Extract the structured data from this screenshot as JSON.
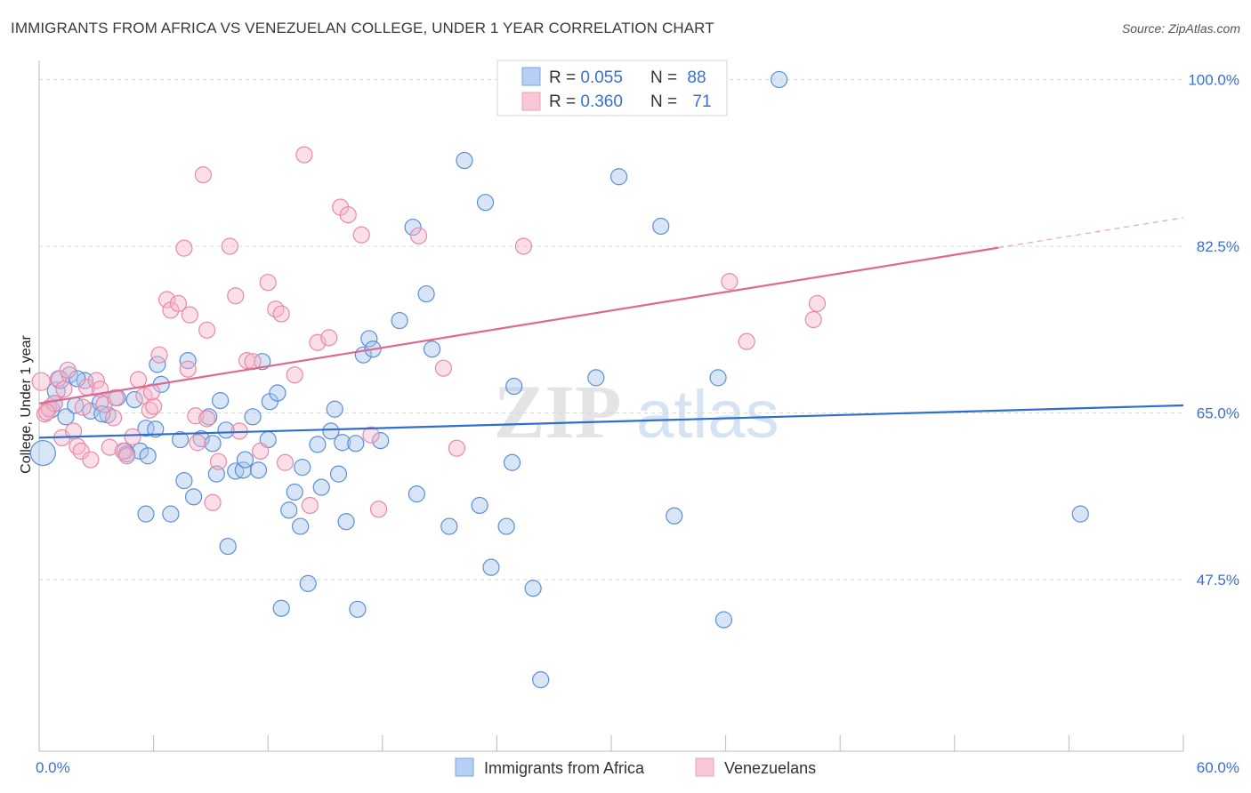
{
  "title": "IMMIGRANTS FROM AFRICA VS VENEZUELAN COLLEGE, UNDER 1 YEAR CORRELATION CHART",
  "source": "Source: ZipAtlas.com",
  "watermark": {
    "zip": "ZIP",
    "atlas": "atlas"
  },
  "colors": {
    "blue_fill": "#a9c5ee",
    "blue_stroke": "#5b8fd6",
    "blue_line": "#2e6fd0",
    "pink_fill": "#f6b8cb",
    "pink_stroke": "#e889a8",
    "pink_line": "#e06890",
    "axis_label": "#3a6fd0",
    "grid": "#d8d8d8"
  },
  "legend": {
    "rows": [
      {
        "r_label": "R = ",
        "r_value": "0.055",
        "n_label": "N = ",
        "n_value": "88",
        "series": "blue"
      },
      {
        "r_label": "R = ",
        "r_value": "0.360",
        "n_label": "N = ",
        "n_value": "71",
        "series": "pink"
      }
    ]
  },
  "bottom_legend": [
    {
      "label": "Immigrants from Africa",
      "series": "blue"
    },
    {
      "label": "Venezuelans",
      "series": "pink"
    }
  ],
  "chart_data": {
    "type": "scatter",
    "title": "IMMIGRANTS FROM AFRICA VS VENEZUELAN COLLEGE, UNDER 1 YEAR CORRELATION CHART",
    "xlabel": "",
    "ylabel": "College, Under 1 year",
    "xlim": [
      0,
      60
    ],
    "ylim": [
      29.5,
      102
    ],
    "x_tick_labels": [
      "0.0%",
      "60.0%"
    ],
    "y_ticks": [
      47.5,
      65.0,
      82.5,
      100.0
    ],
    "y_tick_labels": [
      "47.5%",
      "65.0%",
      "82.5%",
      "100.0%"
    ],
    "grid": "horizontal dashed",
    "legend_position": "top-center",
    "series": [
      {
        "name": "Immigrants from Africa",
        "color": "#a9c5ee",
        "trend": {
          "x": [
            0,
            60
          ],
          "y": [
            62.4,
            65.8
          ],
          "solid_until": 60
        },
        "points": [
          [
            0.2,
            60.8,
            14
          ],
          [
            0.6,
            65.4,
            10
          ],
          [
            0.9,
            67.3,
            10
          ],
          [
            1.1,
            68.5,
            10
          ],
          [
            1.4,
            64.6,
            9
          ],
          [
            1.6,
            69.0,
            9
          ],
          [
            1.9,
            65.8,
            9
          ],
          [
            2.4,
            68.4,
            9
          ],
          [
            2.7,
            65.2,
            9
          ],
          [
            3.2,
            66.1,
            9
          ],
          [
            3.6,
            64.8,
            9
          ],
          [
            4.1,
            66.6,
            9
          ],
          [
            4.5,
            61.0,
            9
          ],
          [
            5.0,
            66.4,
            9
          ],
          [
            5.3,
            61.0,
            9
          ],
          [
            5.6,
            63.4,
            9
          ],
          [
            5.7,
            60.5,
            9
          ],
          [
            5.6,
            54.4,
            9
          ],
          [
            6.1,
            63.3,
            9
          ],
          [
            6.2,
            70.1,
            9
          ],
          [
            6.4,
            68.0,
            9
          ],
          [
            6.9,
            54.4,
            9
          ],
          [
            7.4,
            62.2,
            9
          ],
          [
            7.6,
            57.9,
            9
          ],
          [
            7.8,
            70.5,
            9
          ],
          [
            8.1,
            56.2,
            9
          ],
          [
            8.5,
            62.3,
            9
          ],
          [
            8.9,
            64.6,
            9
          ],
          [
            9.1,
            61.8,
            9
          ],
          [
            9.3,
            58.6,
            9
          ],
          [
            9.5,
            66.3,
            9
          ],
          [
            9.8,
            63.2,
            9
          ],
          [
            9.9,
            51.0,
            9
          ],
          [
            10.3,
            58.9,
            9
          ],
          [
            10.7,
            59.0,
            9
          ],
          [
            10.8,
            60.1,
            9
          ],
          [
            11.2,
            64.6,
            9
          ],
          [
            11.5,
            59.0,
            9
          ],
          [
            11.7,
            70.4,
            9
          ],
          [
            12.0,
            62.2,
            9
          ],
          [
            12.1,
            66.2,
            9
          ],
          [
            12.5,
            67.1,
            9
          ],
          [
            12.7,
            44.5,
            9
          ],
          [
            13.1,
            54.8,
            9
          ],
          [
            13.4,
            56.7,
            9
          ],
          [
            13.7,
            53.1,
            9
          ],
          [
            13.8,
            59.3,
            9
          ],
          [
            14.1,
            47.1,
            9
          ],
          [
            14.6,
            61.7,
            9
          ],
          [
            14.8,
            57.2,
            9
          ],
          [
            15.3,
            63.1,
            9
          ],
          [
            15.5,
            65.4,
            9
          ],
          [
            15.7,
            58.6,
            9
          ],
          [
            15.9,
            61.9,
            9
          ],
          [
            16.1,
            53.6,
            9
          ],
          [
            16.6,
            61.8,
            9
          ],
          [
            16.7,
            44.4,
            9
          ],
          [
            17.0,
            71.1,
            9
          ],
          [
            17.3,
            72.8,
            9
          ],
          [
            17.5,
            71.7,
            9
          ],
          [
            17.9,
            62.1,
            9
          ],
          [
            18.9,
            74.7,
            9
          ],
          [
            19.6,
            84.5,
            9
          ],
          [
            19.8,
            56.5,
            9
          ],
          [
            20.3,
            77.5,
            9
          ],
          [
            20.6,
            71.7,
            9
          ],
          [
            21.5,
            53.1,
            9
          ],
          [
            22.3,
            91.5,
            9
          ],
          [
            23.1,
            55.3,
            9
          ],
          [
            23.4,
            87.1,
            9
          ],
          [
            23.7,
            48.8,
            9
          ],
          [
            24.5,
            53.1,
            9
          ],
          [
            24.8,
            59.8,
            9
          ],
          [
            24.9,
            67.8,
            9
          ],
          [
            25.9,
            46.6,
            9
          ],
          [
            26.3,
            37.0,
            9
          ],
          [
            29.2,
            68.7,
            9
          ],
          [
            30.4,
            89.8,
            9
          ],
          [
            32.6,
            84.6,
            9
          ],
          [
            33.3,
            54.2,
            9
          ],
          [
            35.6,
            68.7,
            9
          ],
          [
            35.9,
            43.3,
            9
          ],
          [
            38.8,
            100.0,
            9
          ],
          [
            54.6,
            54.4,
            9
          ],
          [
            0.8,
            66.0,
            9
          ],
          [
            3.3,
            64.9,
            9
          ],
          [
            2.0,
            68.6,
            9
          ],
          [
            4.6,
            60.7,
            9
          ]
        ]
      },
      {
        "name": "Venezuelans",
        "color": "#f6b8cb",
        "trend": {
          "x": [
            0,
            60
          ],
          "y": [
            66.0,
            85.5
          ],
          "solid_until": 50.3
        },
        "points": [
          [
            0.1,
            68.3,
            10
          ],
          [
            0.3,
            64.9,
            9
          ],
          [
            0.5,
            65.5,
            9
          ],
          [
            0.8,
            66.0,
            9
          ],
          [
            1.0,
            68.6,
            9
          ],
          [
            1.2,
            62.4,
            9
          ],
          [
            1.5,
            69.5,
            9
          ],
          [
            1.8,
            63.1,
            9
          ],
          [
            2.0,
            61.5,
            9
          ],
          [
            2.2,
            61.0,
            9
          ],
          [
            2.5,
            67.7,
            9
          ],
          [
            2.7,
            60.1,
            9
          ],
          [
            3.0,
            68.4,
            9
          ],
          [
            3.2,
            67.5,
            9
          ],
          [
            3.4,
            65.9,
            9
          ],
          [
            3.7,
            61.4,
            9
          ],
          [
            3.9,
            64.5,
            9
          ],
          [
            4.0,
            66.6,
            9
          ],
          [
            4.4,
            61.0,
            9
          ],
          [
            4.6,
            60.5,
            9
          ],
          [
            4.9,
            62.5,
            9
          ],
          [
            5.2,
            68.5,
            9
          ],
          [
            5.5,
            66.8,
            9
          ],
          [
            5.8,
            65.3,
            9
          ],
          [
            6.0,
            65.7,
            9
          ],
          [
            6.3,
            71.1,
            9
          ],
          [
            6.7,
            76.9,
            9
          ],
          [
            6.9,
            75.8,
            9
          ],
          [
            7.3,
            76.5,
            9
          ],
          [
            7.6,
            82.3,
            9
          ],
          [
            7.8,
            69.6,
            9
          ],
          [
            7.9,
            75.3,
            9
          ],
          [
            8.2,
            64.7,
            9
          ],
          [
            8.6,
            90.0,
            9
          ],
          [
            8.8,
            73.7,
            9
          ],
          [
            8.8,
            64.4,
            9
          ],
          [
            9.1,
            55.6,
            9
          ],
          [
            9.4,
            59.9,
            9
          ],
          [
            10.0,
            82.5,
            9
          ],
          [
            10.3,
            77.3,
            9
          ],
          [
            10.5,
            63.1,
            9
          ],
          [
            10.9,
            70.5,
            9
          ],
          [
            11.6,
            61.0,
            9
          ],
          [
            12.0,
            78.7,
            9
          ],
          [
            12.4,
            75.9,
            9
          ],
          [
            12.7,
            75.4,
            9
          ],
          [
            12.9,
            59.8,
            9
          ],
          [
            13.4,
            69.0,
            9
          ],
          [
            13.9,
            92.1,
            9
          ],
          [
            14.2,
            55.3,
            9
          ],
          [
            14.6,
            72.4,
            9
          ],
          [
            15.2,
            72.9,
            9
          ],
          [
            15.8,
            86.6,
            9
          ],
          [
            16.2,
            85.8,
            9
          ],
          [
            16.9,
            83.7,
            9
          ],
          [
            17.4,
            62.7,
            9
          ],
          [
            17.8,
            54.9,
            9
          ],
          [
            19.9,
            83.6,
            9
          ],
          [
            21.2,
            69.7,
            9
          ],
          [
            21.9,
            61.3,
            9
          ],
          [
            25.4,
            82.5,
            9
          ],
          [
            36.2,
            78.8,
            9
          ],
          [
            37.1,
            72.5,
            9
          ],
          [
            40.6,
            74.8,
            9
          ],
          [
            40.8,
            76.5,
            9
          ],
          [
            0.4,
            65.1,
            9
          ],
          [
            1.3,
            67.5,
            9
          ],
          [
            2.3,
            65.6,
            9
          ],
          [
            5.9,
            67.2,
            9
          ],
          [
            8.3,
            61.9,
            9
          ],
          [
            11.2,
            70.4,
            9
          ]
        ]
      }
    ]
  }
}
